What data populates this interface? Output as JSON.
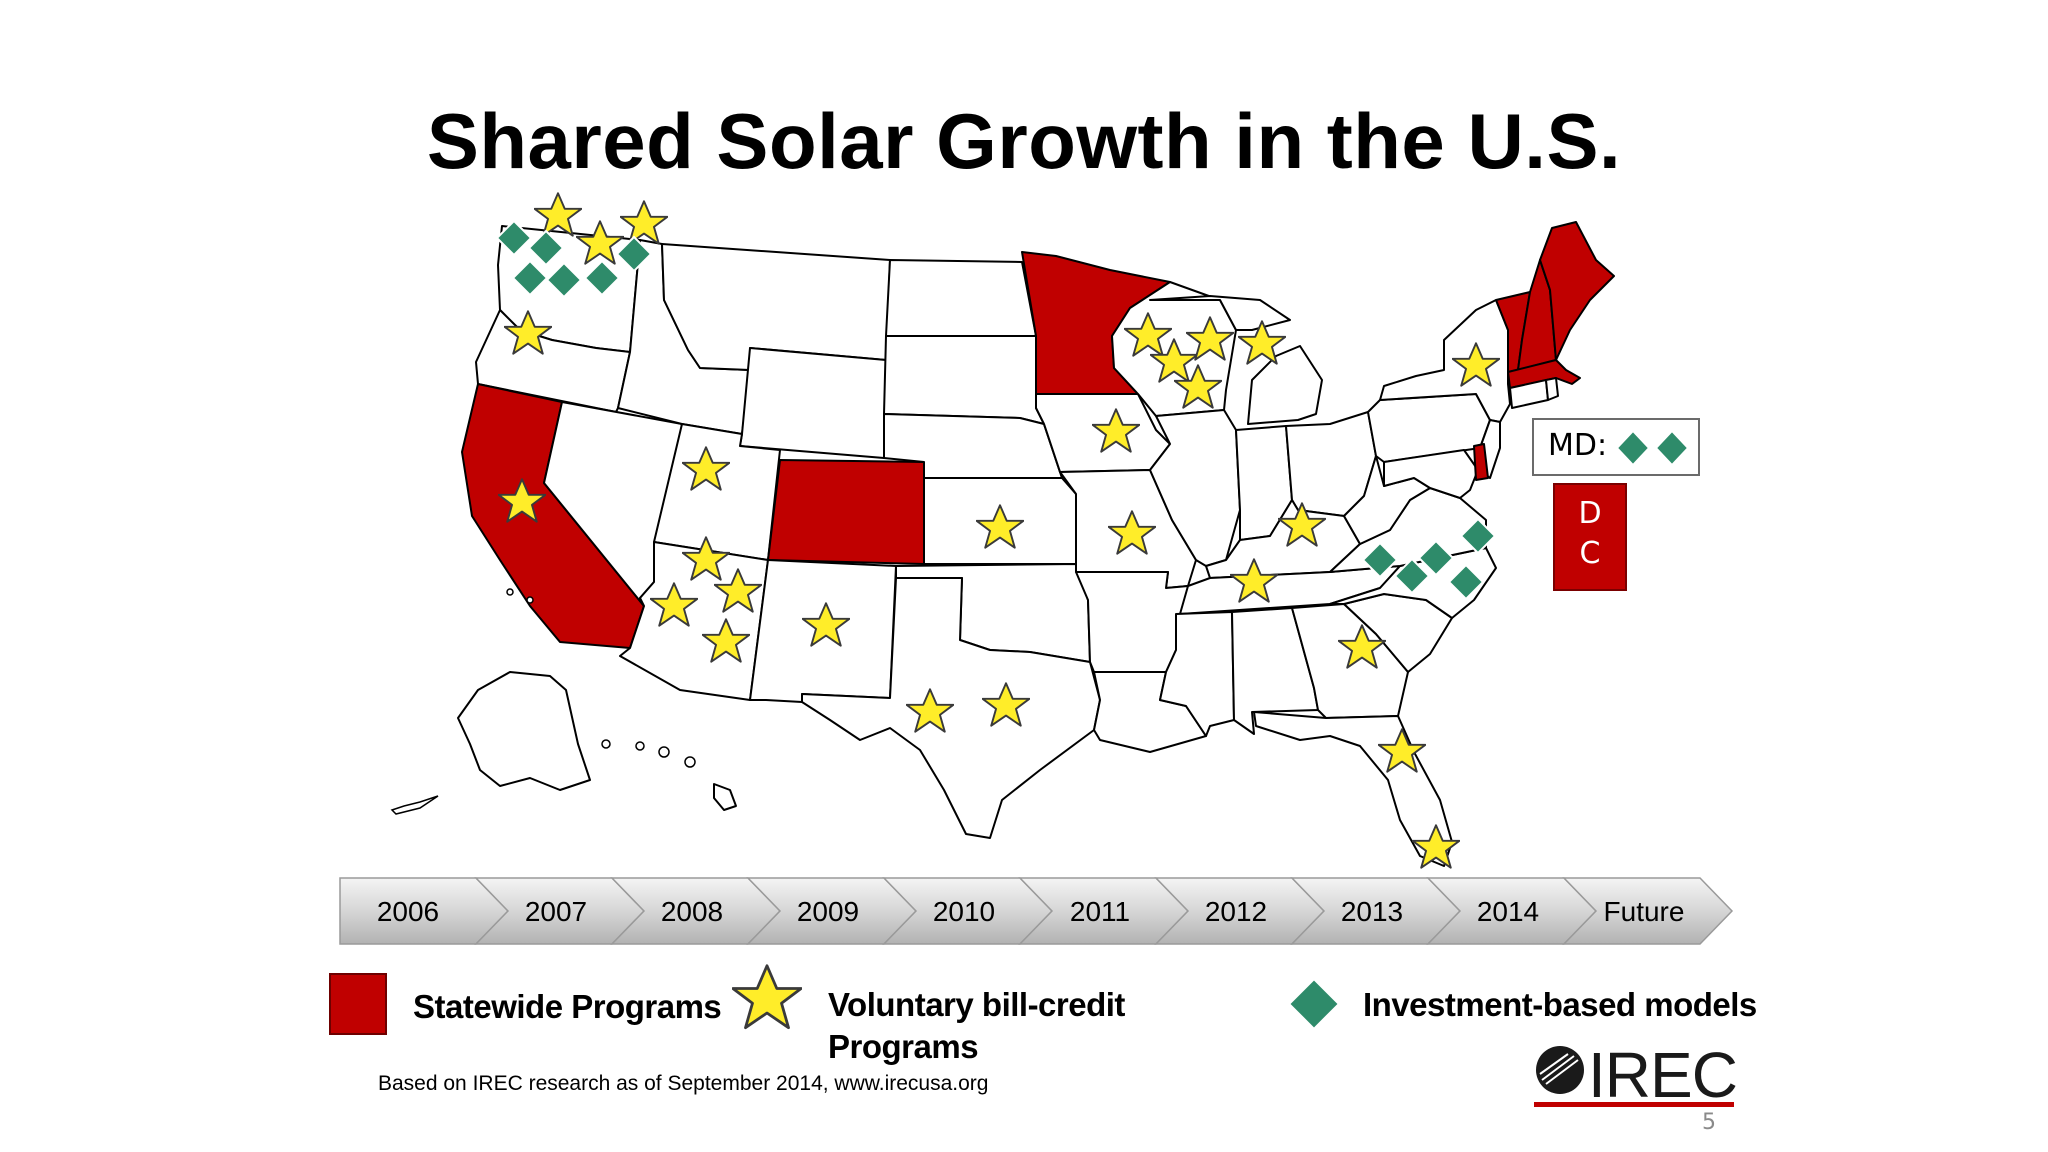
{
  "title": "Shared Solar Growth in the U.S.",
  "timeline": {
    "years": [
      "2006",
      "2007",
      "2008",
      "2009",
      "2010",
      "2011",
      "2012",
      "2013",
      "2014",
      "Future"
    ]
  },
  "callouts": {
    "md_label": "MD:",
    "dc_line1": "D",
    "dc_line2": "C"
  },
  "legend": {
    "statewide": "Statewide Programs",
    "voluntary_line1": "Voluntary bill-credit",
    "voluntary_line2": "Programs",
    "investment": "Investment-based models"
  },
  "source": "Based on IREC research as of September 2014, www.irecusa.org",
  "logo_text": "IREC",
  "page_number": "5",
  "colors": {
    "statewide": "#c00000",
    "voluntary": "#ffed29",
    "investment": "#2e8b6a"
  },
  "icons": {
    "statewide": "red-square",
    "voluntary": "yellow-star",
    "investment": "green-diamond"
  },
  "map": {
    "statewide_states": [
      "California",
      "Colorado",
      "Minnesota",
      "Vermont",
      "New Hampshire",
      "Maine",
      "Massachusetts",
      "Delaware",
      "DC"
    ],
    "voluntary_star_states": [
      "Washington",
      "Oregon",
      "California",
      "Utah",
      "Arizona",
      "New Mexico",
      "Texas",
      "Kansas",
      "Iowa",
      "Missouri",
      "Wisconsin",
      "Michigan",
      "Kentucky",
      "Tennessee",
      "Georgia",
      "Florida",
      "New York"
    ],
    "investment_diamond_states": [
      "Washington",
      "North Carolina",
      "Maryland"
    ]
  }
}
